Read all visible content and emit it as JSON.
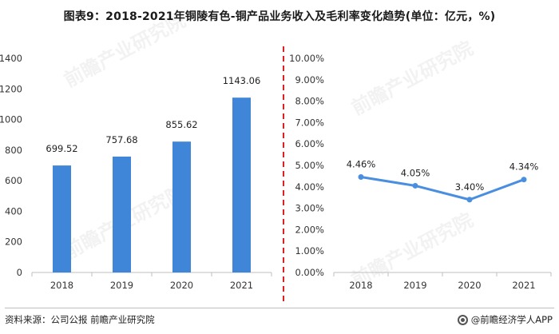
{
  "title": "图表9：2018-2021年铜陵有色-铜产品业务收入及毛利率变化趋势(单位：亿元，%)",
  "source": "资料来源：公司公报 前瞻产业研究院",
  "brand": "@前瞻经济学人APP",
  "watermark": "前瞻产业研究院",
  "colors": {
    "bar": "#3f86d8",
    "line": "#4a8ee0",
    "divider": "#e02020",
    "axis": "#bfbfbf"
  },
  "chart_data": [
    {
      "type": "bar",
      "categories": [
        "2018",
        "2019",
        "2020",
        "2021"
      ],
      "values": [
        699.52,
        757.68,
        855.62,
        1143.06
      ],
      "value_labels": [
        "699.52",
        "757.68",
        "855.62",
        "1143.06"
      ],
      "ylim": [
        0,
        1400
      ],
      "yticks": [
        0,
        200,
        400,
        600,
        800,
        1000,
        1200,
        1400
      ],
      "ytick_labels": [
        "0",
        "200",
        "400",
        "600",
        "800",
        "1000",
        "1200",
        "1400"
      ],
      "grid": false
    },
    {
      "type": "line",
      "categories": [
        "2018",
        "2019",
        "2020",
        "2021"
      ],
      "values": [
        4.46,
        4.05,
        3.4,
        4.34
      ],
      "value_labels": [
        "4.46%",
        "4.05%",
        "3.40%",
        "4.34%"
      ],
      "ylim": [
        0,
        10
      ],
      "yticks": [
        0,
        1,
        2,
        3,
        4,
        5,
        6,
        7,
        8,
        9,
        10
      ],
      "ytick_labels": [
        "0.00%",
        "1.00%",
        "2.00%",
        "3.00%",
        "4.00%",
        "5.00%",
        "6.00%",
        "7.00%",
        "8.00%",
        "9.00%",
        "10.00%"
      ],
      "grid": false
    }
  ]
}
